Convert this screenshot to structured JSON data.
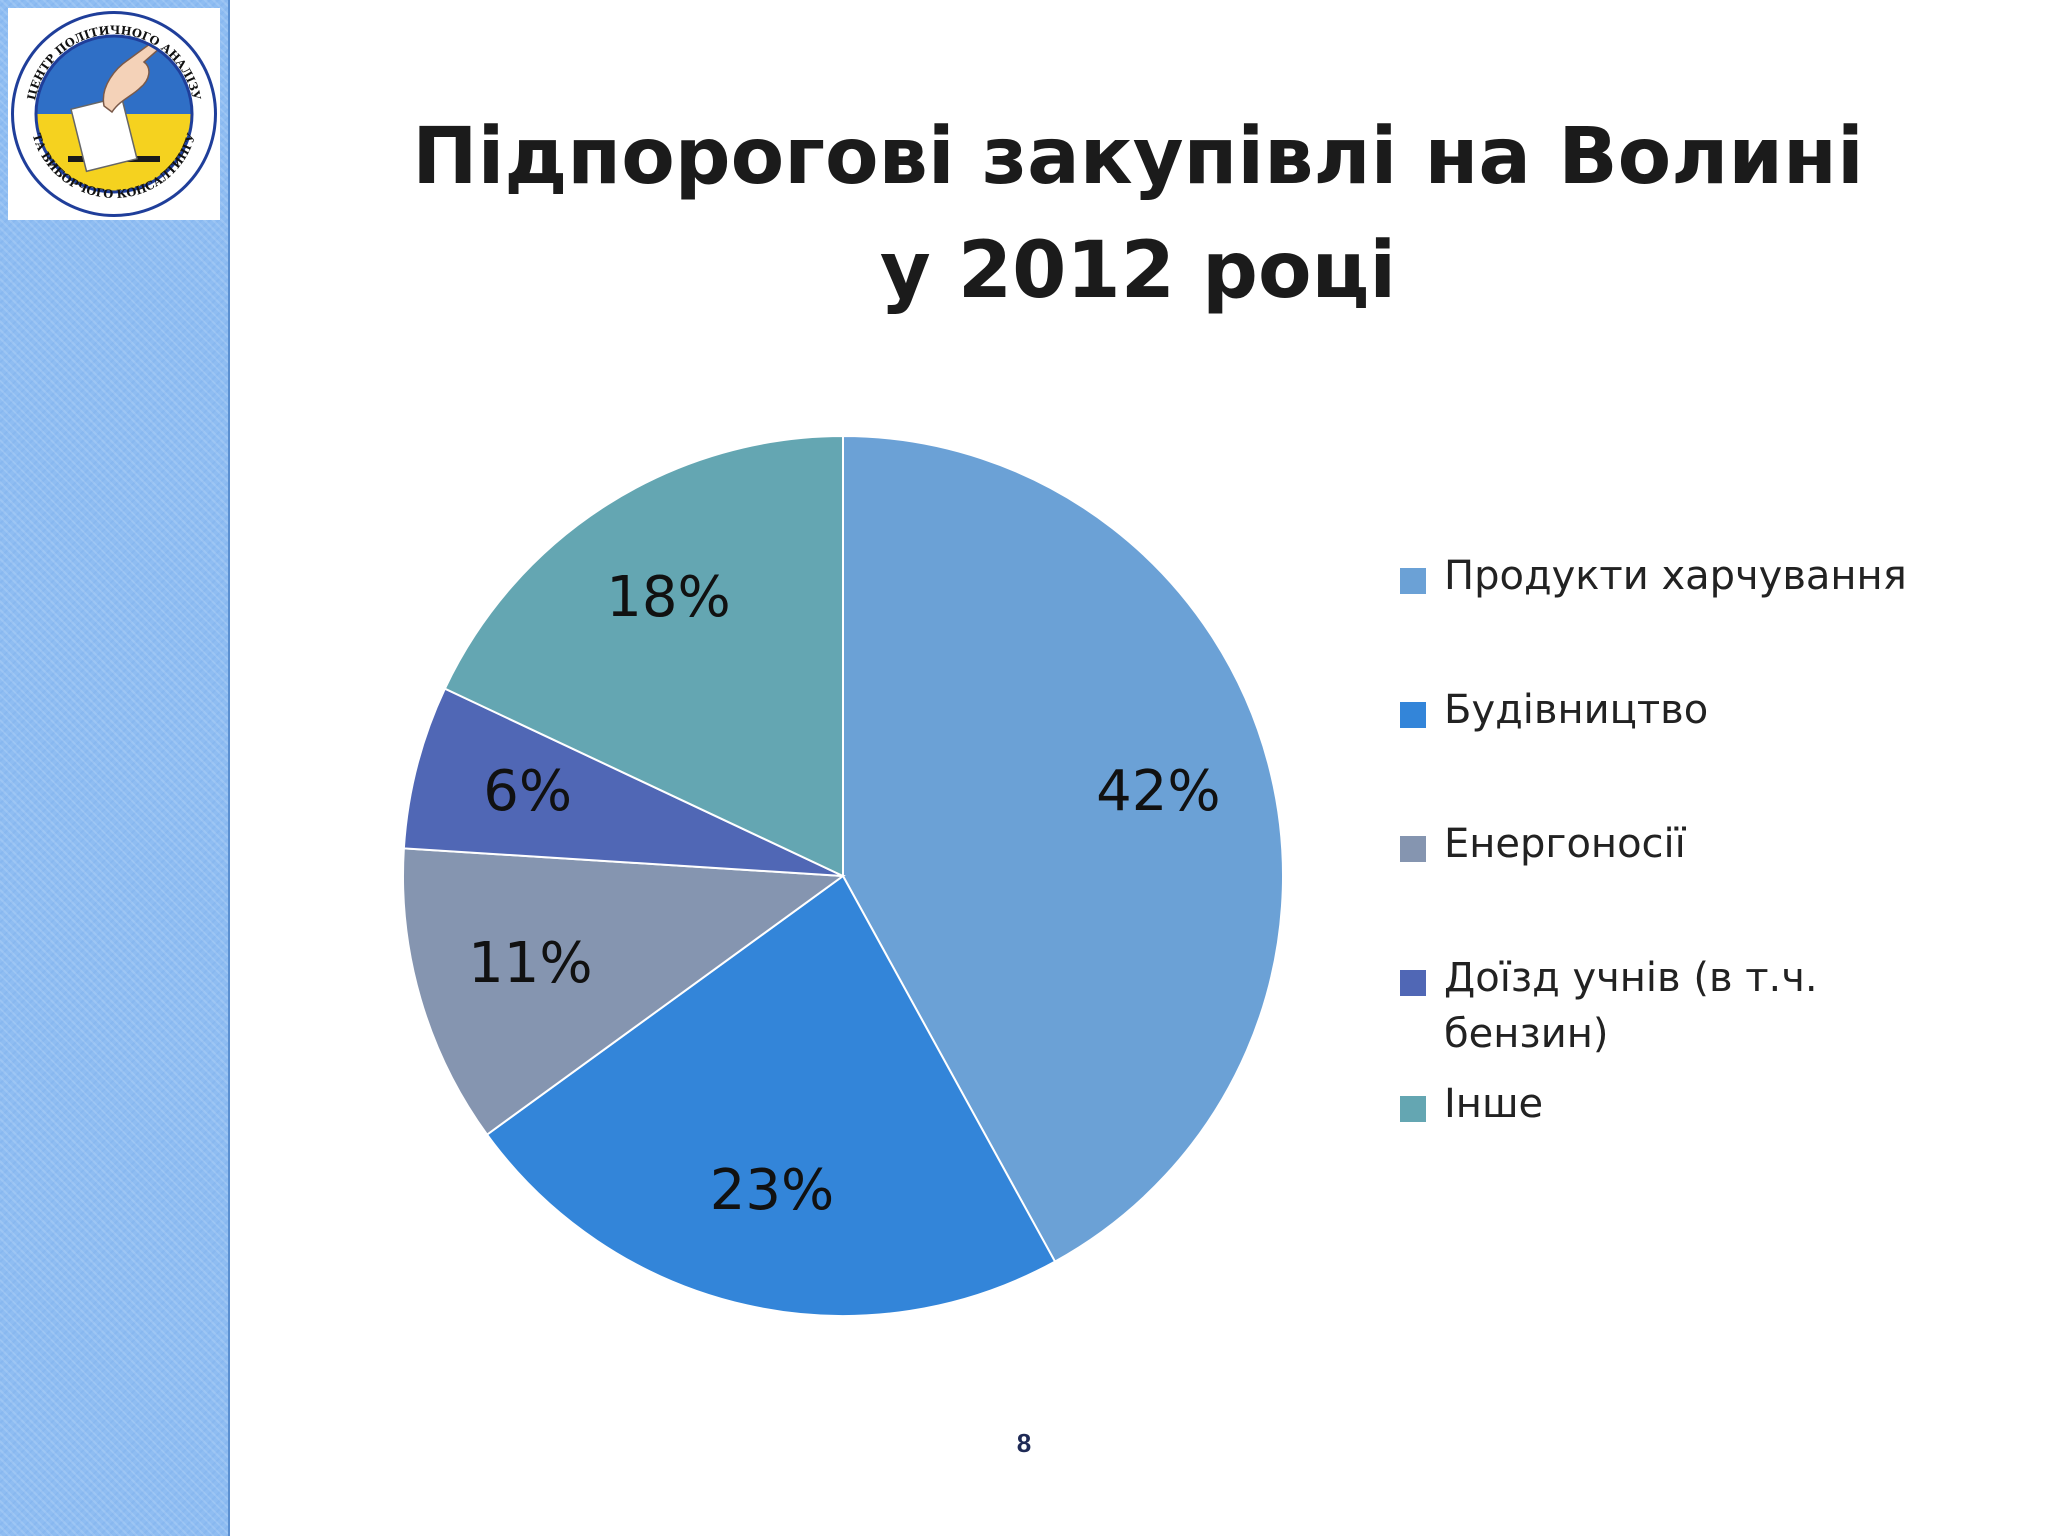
{
  "logo": {
    "text_top": "ЦЕНТР ПОЛІТИЧНОГО АНАЛІЗУ",
    "text_bottom": "ТА ВИБОРЧОГО КОНСАЛТИНГУ",
    "colors": {
      "ring": "#1f3e9a",
      "blue": "#2f6fc6",
      "yellow": "#f5d21f"
    }
  },
  "slide": {
    "title_line1": "Підпорогові закупівлі на Волині",
    "title_line2": "у 2012 році",
    "page_number": "8"
  },
  "chart_data": {
    "type": "pie",
    "title": "Підпорогові закупівлі на Волині у 2012 році",
    "legend_position": "right",
    "slices": [
      {
        "label": "Продукти харчування",
        "value": 42,
        "value_label": "42%",
        "color": "#6ba1d6"
      },
      {
        "label": "Будівництво",
        "value": 23,
        "value_label": "23%",
        "color": "#3385d9"
      },
      {
        "label": "Енергоносії",
        "value": 11,
        "value_label": "11%",
        "color": "#8595b0"
      },
      {
        "label": "Доїзд учнів (в т.ч. бензин)",
        "value": 6,
        "value_label": "6%",
        "color": "#5067b5"
      },
      {
        "label": "Інше",
        "value": 18,
        "value_label": "18%",
        "color": "#64a6b2"
      }
    ]
  }
}
